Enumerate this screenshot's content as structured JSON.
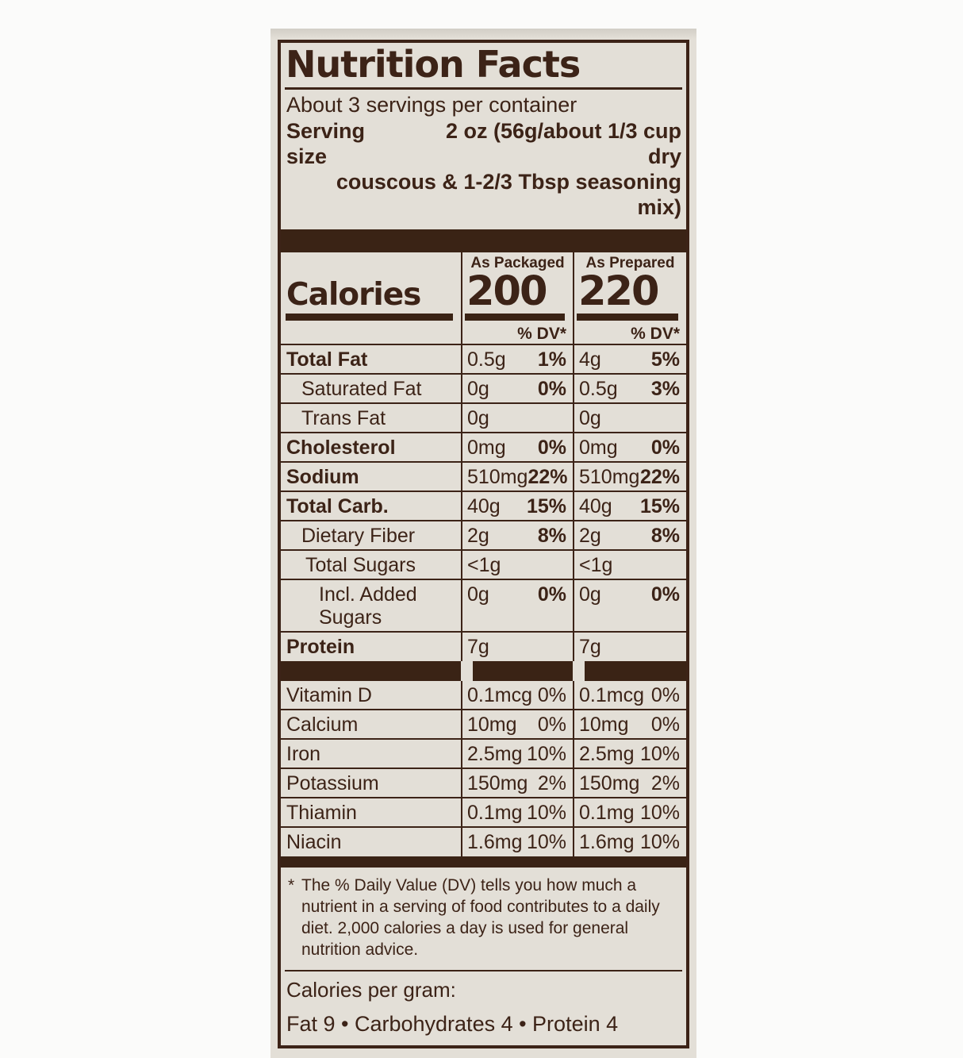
{
  "colors": {
    "ink": "#3c2317",
    "label_background": "#e3dfd7",
    "page_background": "#fbfbfa"
  },
  "header": {
    "title": "Nutrition Facts",
    "servings_per_container": "About 3 servings per container",
    "serving_size_label": "Serving size",
    "serving_size_value_line1": "2 oz (56g/about 1/3 cup dry",
    "serving_size_value_line2": "couscous & 1-2/3 Tbsp seasoning mix)"
  },
  "calories": {
    "label": "Calories",
    "packaged_header": "As Packaged",
    "packaged_value": "200",
    "prepared_header": "As Prepared",
    "prepared_value": "220",
    "dv_header_packaged": "% DV*",
    "dv_header_prepared": "% DV*"
  },
  "nutrients": [
    {
      "label": "Total Fat",
      "pack_amt": "0.5g",
      "pack_dv": "1%",
      "prep_amt": "4g",
      "prep_dv": "5%"
    },
    {
      "label": "Saturated Fat",
      "pack_amt": "0g",
      "pack_dv": "0%",
      "prep_amt": "0.5g",
      "prep_dv": "3%"
    },
    {
      "label": "Trans Fat",
      "pack_amt": "0g",
      "pack_dv": "",
      "prep_amt": "0g",
      "prep_dv": ""
    },
    {
      "label": "Cholesterol",
      "pack_amt": "0mg",
      "pack_dv": "0%",
      "prep_amt": "0mg",
      "prep_dv": "0%"
    },
    {
      "label": "Sodium",
      "pack_amt": "510mg",
      "pack_dv": "22%",
      "prep_amt": "510mg",
      "prep_dv": "22%"
    },
    {
      "label": "Total Carb.",
      "pack_amt": "40g",
      "pack_dv": "15%",
      "prep_amt": "40g",
      "prep_dv": "15%"
    },
    {
      "label": "Dietary Fiber",
      "pack_amt": "2g",
      "pack_dv": "8%",
      "prep_amt": "2g",
      "prep_dv": "8%"
    },
    {
      "label": "Total Sugars",
      "pack_amt": "<1g",
      "pack_dv": "",
      "prep_amt": "<1g",
      "prep_dv": ""
    },
    {
      "label": "Incl. Added Sugars",
      "pack_amt": "0g",
      "pack_dv": "0%",
      "prep_amt": "0g",
      "prep_dv": "0%"
    },
    {
      "label": "Protein",
      "pack_amt": "7g",
      "pack_dv": "",
      "prep_amt": "7g",
      "prep_dv": ""
    }
  ],
  "vitamins": [
    {
      "label": "Vitamin D",
      "pack_amt": "0.1mcg",
      "pack_dv": "0%",
      "prep_amt": "0.1mcg",
      "prep_dv": "0%"
    },
    {
      "label": "Calcium",
      "pack_amt": "10mg",
      "pack_dv": "0%",
      "prep_amt": "10mg",
      "prep_dv": "0%"
    },
    {
      "label": "Iron",
      "pack_amt": "2.5mg",
      "pack_dv": "10%",
      "prep_amt": "2.5mg",
      "prep_dv": "10%"
    },
    {
      "label": "Potassium",
      "pack_amt": "150mg",
      "pack_dv": "2%",
      "prep_amt": "150mg",
      "prep_dv": "2%"
    },
    {
      "label": "Thiamin",
      "pack_amt": "0.1mg",
      "pack_dv": "10%",
      "prep_amt": "0.1mg",
      "prep_dv": "10%"
    },
    {
      "label": "Niacin",
      "pack_amt": "1.6mg",
      "pack_dv": "10%",
      "prep_amt": "1.6mg",
      "prep_dv": "10%"
    }
  ],
  "footnote": {
    "marker": "*",
    "text": "The % Daily Value (DV) tells you how much a nutrient in a serving of food contributes to a daily diet. 2,000 calories a day is used for general nutrition advice."
  },
  "calories_per_gram": {
    "label": "Calories per gram:",
    "values": "Fat 9 • Carbohydrates 4 • Protein 4"
  }
}
